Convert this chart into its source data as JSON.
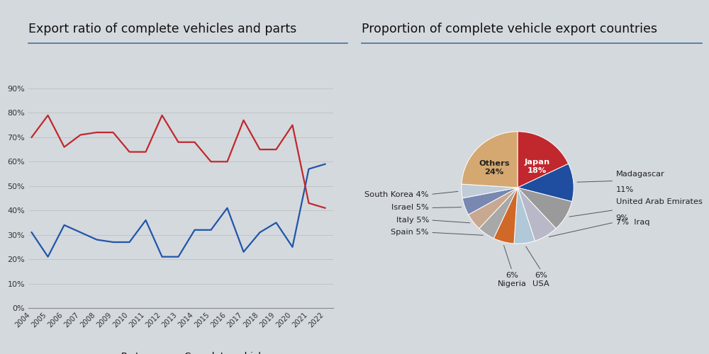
{
  "line_title": "Export ratio of complete vehicles and parts",
  "pie_title": "Proportion of complete vehicle export countries",
  "years": [
    2004,
    2005,
    2006,
    2007,
    2008,
    2009,
    2010,
    2011,
    2012,
    2013,
    2014,
    2015,
    2016,
    2017,
    2018,
    2019,
    2020,
    2021,
    2022
  ],
  "parts": [
    31,
    21,
    34,
    31,
    28,
    27,
    27,
    36,
    21,
    21,
    32,
    32,
    41,
    23,
    31,
    35,
    25,
    57,
    59
  ],
  "complete_vehicles": [
    70,
    79,
    66,
    71,
    72,
    72,
    64,
    64,
    79,
    68,
    68,
    60,
    60,
    77,
    65,
    65,
    75,
    43,
    41
  ],
  "parts_color": "#2155a8",
  "complete_color": "#c0282d",
  "ylim": [
    0,
    90
  ],
  "yticks": [
    0,
    10,
    20,
    30,
    40,
    50,
    60,
    70,
    80,
    90
  ],
  "pie_labels": [
    "Japan",
    "Madagascar",
    "United Arab Emirates",
    "Iraq",
    "USA",
    "Nigeria",
    "Spain",
    "Italy",
    "Israel",
    "South Korea",
    "Others"
  ],
  "pie_values": [
    18,
    11,
    9,
    7,
    6,
    6,
    5,
    5,
    5,
    4,
    24
  ],
  "pie_colors": [
    "#c0282d",
    "#1f4ea0",
    "#9a9a9a",
    "#b8b8c8",
    "#b0c8d8",
    "#d06828",
    "#a8a8a8",
    "#c8a890",
    "#7888b0",
    "#c0ccd8",
    "#d4a870"
  ],
  "bg_color": "#d4d9de",
  "separator_color": "#4a6fa0",
  "line_color": "#555555"
}
